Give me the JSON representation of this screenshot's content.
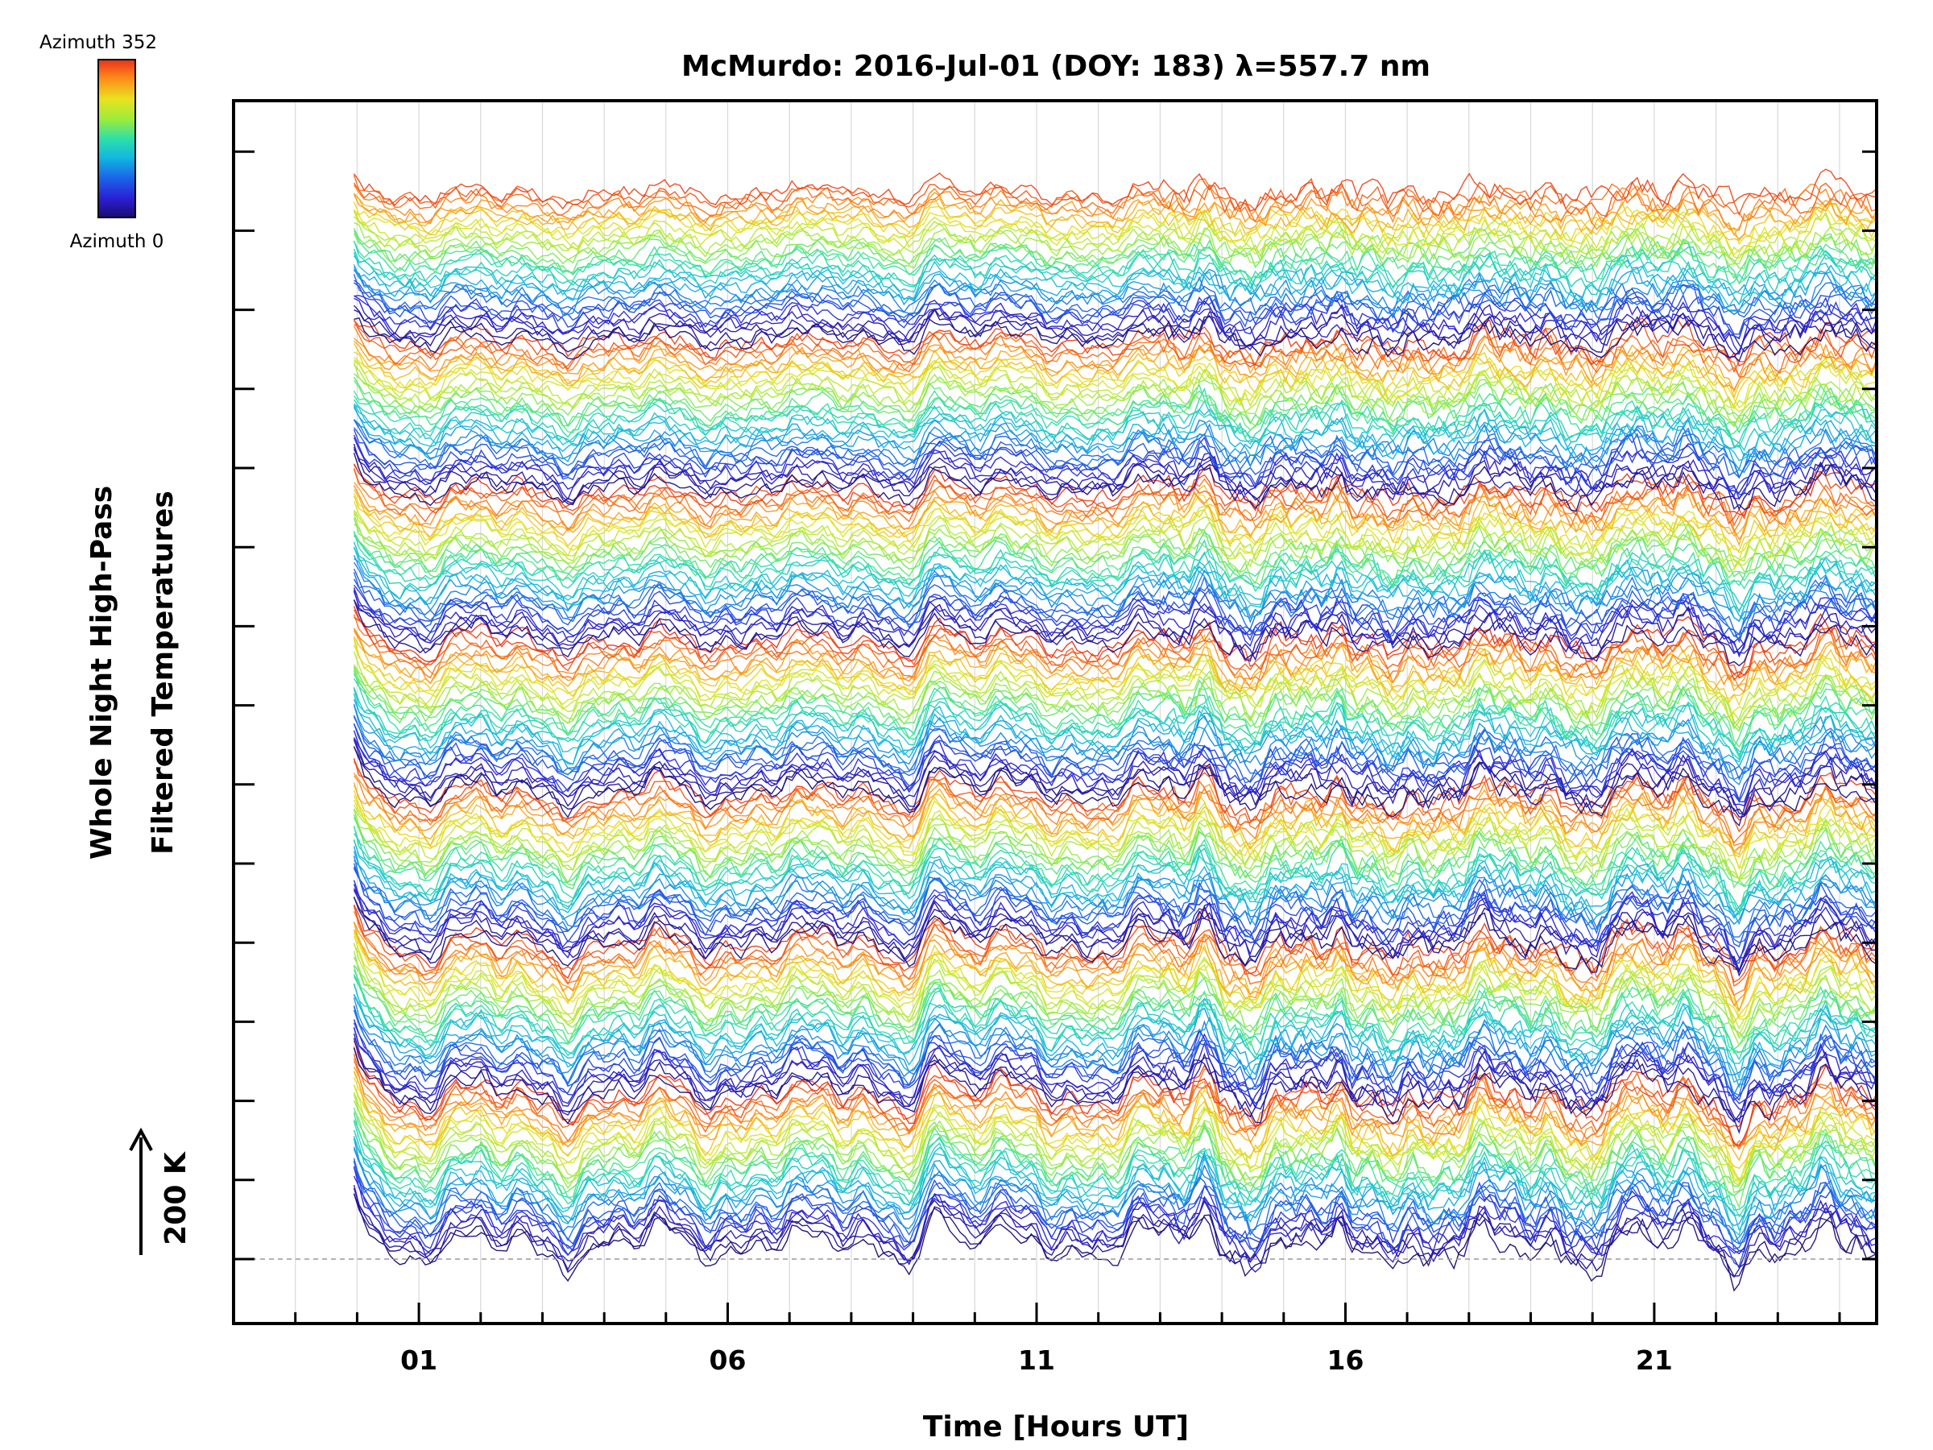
{
  "chart_data": {
    "type": "line",
    "title": "McMurdo: 2016-Jul-01 (DOY: 183) λ=557.7 nm",
    "xlabel": "Time [Hours UT]",
    "ylabel": [
      "Whole Night High-Pass",
      "Filtered Temperatures"
    ],
    "scale_label": "200 K",
    "xlim": [
      -2,
      24.6
    ],
    "x_ticks": [
      1,
      6,
      11,
      16,
      21
    ],
    "x_tick_labels": [
      "01",
      "06",
      11,
      "16",
      "21"
    ],
    "data_start_hour": -0.05,
    "data_end_hour": 24.6,
    "series_count": 240,
    "series_groups": 7,
    "colorbar": {
      "top_label": "Azimuth 352",
      "bottom_label": "Azimuth 0",
      "azimuth_min": 0,
      "azimuth_max": 352,
      "colormap": [
        "#1a0d6e",
        "#2b1fd6",
        "#1b64e8",
        "#12b8e0",
        "#2ee0a8",
        "#9bec3c",
        "#e9e21e",
        "#ff8c1a",
        "#e8321a"
      ]
    },
    "common_features_hours": [
      0.1,
      6.6,
      9.4,
      11.0,
      13.7,
      16.1,
      20.7,
      22.4
    ],
    "grid": true
  }
}
